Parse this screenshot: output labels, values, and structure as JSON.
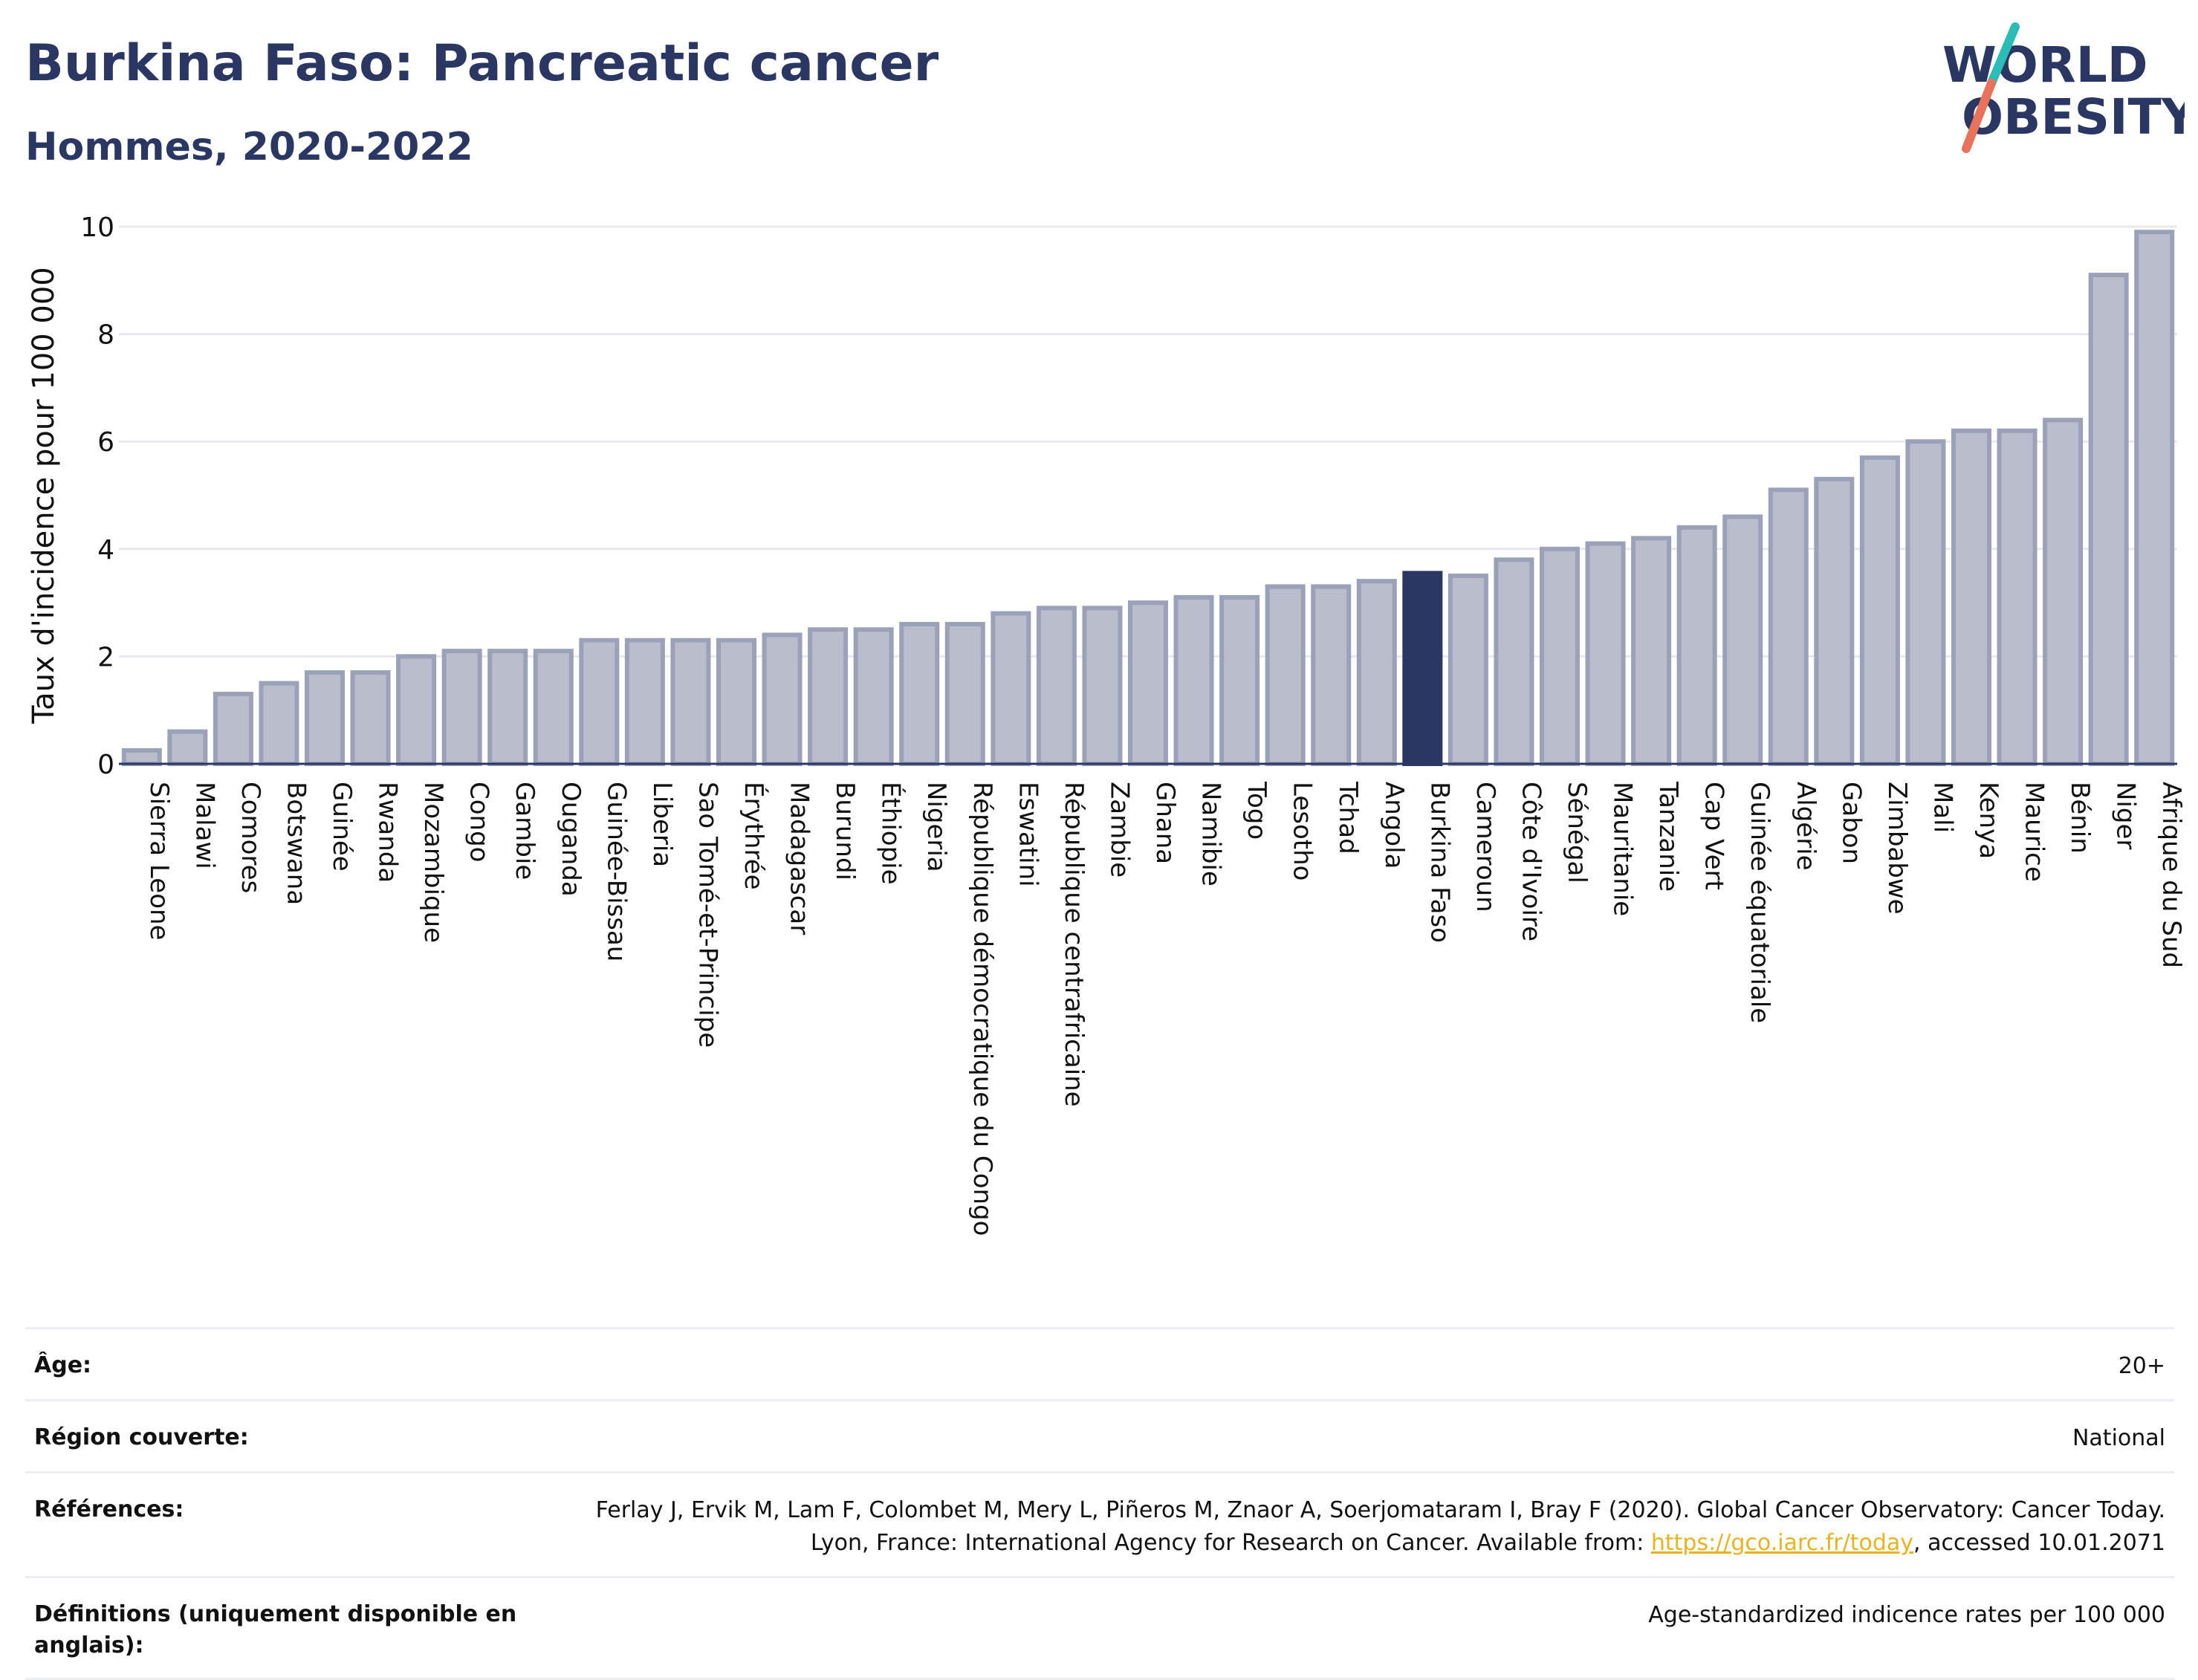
{
  "header": {
    "title": "Burkina Faso: Pancreatic cancer",
    "subtitle": "Hommes, 2020-2022"
  },
  "logo": {
    "line1": "WORLD",
    "line2": "OBESITY",
    "colors": {
      "text": "#2b3763",
      "slash_red": "#e8735a",
      "slash_teal": "#2bbdb5"
    }
  },
  "chart_data": {
    "type": "bar",
    "ylabel": "Taux d'incidence pour 100 000",
    "xlabel": "",
    "ylim": [
      0,
      10
    ],
    "yticks": [
      0,
      2,
      4,
      6,
      8,
      10
    ],
    "grid": true,
    "highlight": "Burkina Faso",
    "colors": {
      "bar": "#b9bdcc",
      "bar_edge": "#9ba1b8",
      "highlight": "#2b3763",
      "grid": "#e8e9ef",
      "axis": "#2b3763"
    },
    "categories": [
      "Sierra Leone",
      "Malawi",
      "Comores",
      "Botswana",
      "Guinée",
      "Rwanda",
      "Mozambique",
      "Congo",
      "Gambie",
      "Ouganda",
      "Guinée-Bissau",
      "Liberia",
      "Sao Tomé-et-Principe",
      "Érythrée",
      "Madagascar",
      "Burundi",
      "Éthiopie",
      "Nigeria",
      "République démocratique du Congo",
      "Eswatini",
      "République centrafricaine",
      "Zambie",
      "Ghana",
      "Namibie",
      "Togo",
      "Lesotho",
      "Tchad",
      "Angola",
      "Burkina Faso",
      "Cameroun",
      "Côte d'Ivoire",
      "Sénégal",
      "Mauritanie",
      "Tanzanie",
      "Cap Vert",
      "Guinée équatoriale",
      "Algérie",
      "Gabon",
      "Zimbabwe",
      "Mali",
      "Kenya",
      "Maurice",
      "Bénin",
      "Niger",
      "Afrique du Sud"
    ],
    "values": [
      0.25,
      0.6,
      1.3,
      1.5,
      1.7,
      1.7,
      2.0,
      2.1,
      2.1,
      2.1,
      2.3,
      2.3,
      2.3,
      2.3,
      2.4,
      2.5,
      2.5,
      2.6,
      2.6,
      2.8,
      2.9,
      2.9,
      3.0,
      3.1,
      3.1,
      3.3,
      3.3,
      3.4,
      3.55,
      3.5,
      3.8,
      4.0,
      4.1,
      4.2,
      4.4,
      4.6,
      5.1,
      5.3,
      5.7,
      6.0,
      6.2,
      6.2,
      6.4,
      9.1,
      9.9
    ]
  },
  "info": {
    "age_label": "Âge:",
    "age_value": "20+",
    "region_label": "Région couverte:",
    "region_value": "National",
    "refs_label": "Références:",
    "refs_text1": "Ferlay J, Ervik M, Lam F, Colombet M, Mery L, Piñeros M, Znaor A, Soerjomataram I, Bray F (2020). Global Cancer Observatory: Cancer Today. Lyon, France: International Agency for Research on Cancer. Available from: ",
    "refs_link": "https://gco.iarc.fr/today",
    "refs_text2": ", accessed 10.01.2071",
    "defs_label": "Définitions (uniquement disponible en anglais):",
    "defs_value": "Age-standardized indicence rates per 100 000"
  }
}
